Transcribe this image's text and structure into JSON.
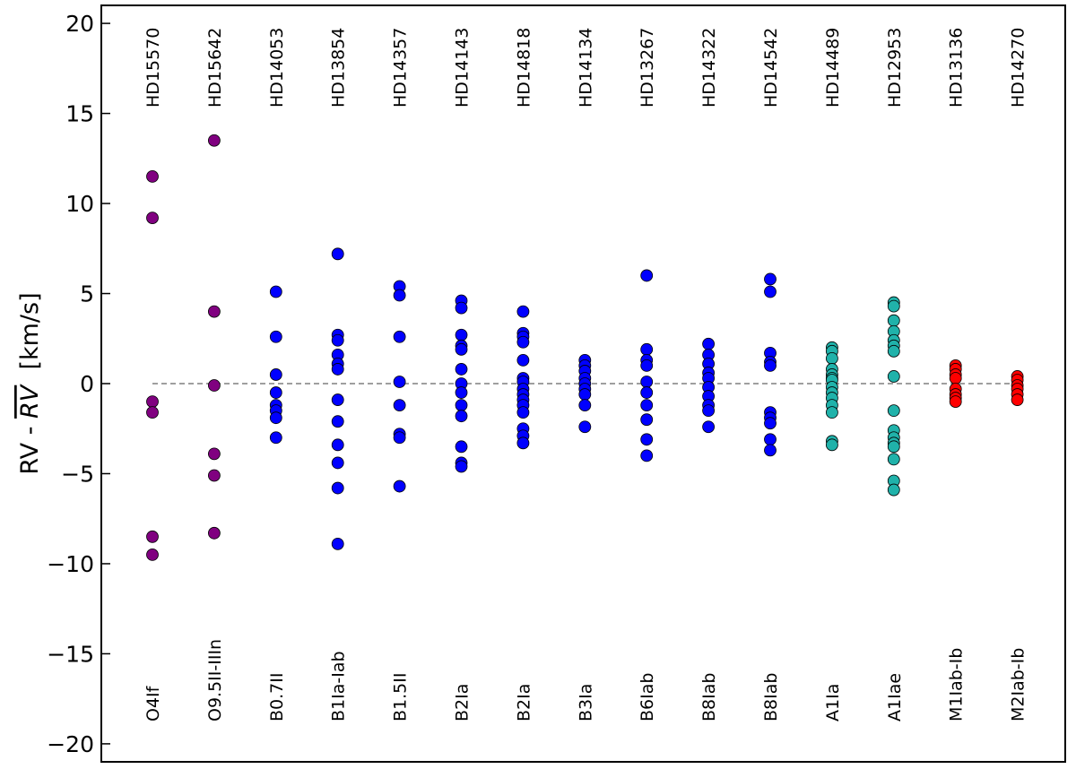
{
  "chart_data": {
    "type": "scatter",
    "title": "",
    "xlabel": "",
    "ylabel": "RV - RV  [km/s]",
    "ylabel_parts": {
      "prefix": "RV - ",
      "overline": "RV",
      "suffix": "  [km/s]"
    },
    "ylim": [
      -21,
      21
    ],
    "yticks": [
      -20,
      -15,
      -10,
      -5,
      0,
      5,
      10,
      15,
      20
    ],
    "ytick_labels": [
      "−20",
      "−15",
      "−10",
      "−5",
      "0",
      "5",
      "10",
      "15",
      "20"
    ],
    "grid": false,
    "legend": "none",
    "reference_line": {
      "y": 0,
      "style": "dashed",
      "color": "#666666"
    },
    "colors": {
      "O": "#800080",
      "B": "#0000ff",
      "A": "#20b2aa",
      "M": "#ff0000"
    },
    "stars": [
      {
        "name": "HD15570",
        "sptype": "O4If",
        "color_class": "O",
        "values": [
          11.5,
          9.2,
          -1.0,
          -1.6,
          -8.5,
          -9.5
        ]
      },
      {
        "name": "HD15642",
        "sptype": "O9.5II-IIIn",
        "color_class": "O",
        "values": [
          13.5,
          4.0,
          -0.1,
          -3.9,
          -5.1,
          -8.3
        ]
      },
      {
        "name": "HD14053",
        "sptype": "B0.7II",
        "color_class": "B",
        "values": [
          5.1,
          2.6,
          0.5,
          -0.5,
          -1.2,
          -1.5,
          -1.9,
          -3.0
        ]
      },
      {
        "name": "HD13854",
        "sptype": "B1Ia-Iab",
        "color_class": "B",
        "values": [
          7.2,
          2.7,
          2.4,
          1.6,
          1.1,
          0.8,
          -0.9,
          -2.1,
          -3.4,
          -4.4,
          -5.8,
          -8.9
        ]
      },
      {
        "name": "HD14357",
        "sptype": "B1.5II",
        "color_class": "B",
        "values": [
          5.4,
          4.9,
          2.6,
          0.1,
          -1.2,
          -2.8,
          -3.0,
          -5.7
        ]
      },
      {
        "name": "HD14143",
        "sptype": "B2Ia",
        "color_class": "B",
        "values": [
          4.6,
          4.2,
          2.7,
          2.1,
          1.9,
          0.8,
          0.0,
          -0.5,
          -1.2,
          -1.8,
          -3.5,
          -4.4,
          -4.6
        ]
      },
      {
        "name": "HD14818",
        "sptype": "B2Ia",
        "color_class": "B",
        "values": [
          4.0,
          2.8,
          2.6,
          2.3,
          1.3,
          0.3,
          0.1,
          -0.3,
          -0.6,
          -0.9,
          -1.2,
          -1.6,
          -2.5,
          -2.9,
          -3.3
        ]
      },
      {
        "name": "HD14134",
        "sptype": "B3Ia",
        "color_class": "B",
        "values": [
          1.3,
          1.0,
          0.7,
          0.3,
          0.0,
          -0.3,
          -0.6,
          -1.2,
          -2.4
        ]
      },
      {
        "name": "HD13267",
        "sptype": "B6Iab",
        "color_class": "B",
        "values": [
          6.0,
          1.9,
          1.3,
          1.0,
          0.1,
          -0.5,
          -1.2,
          -2.0,
          -3.1,
          -4.0
        ]
      },
      {
        "name": "HD14322",
        "sptype": "B8Iab",
        "color_class": "B",
        "values": [
          2.2,
          1.6,
          1.1,
          0.6,
          0.3,
          -0.2,
          -0.7,
          -1.2,
          -1.5,
          -2.4
        ]
      },
      {
        "name": "HD14542",
        "sptype": "B8Iab",
        "color_class": "B",
        "values": [
          5.8,
          5.1,
          1.7,
          1.2,
          1.0,
          -1.6,
          -1.9,
          -2.2,
          -3.1,
          -3.7
        ]
      },
      {
        "name": "HD14489",
        "sptype": "A1Ia",
        "color_class": "A",
        "values": [
          2.0,
          1.8,
          1.4,
          0.8,
          0.5,
          0.3,
          0.2,
          -0.2,
          -0.5,
          -0.8,
          -1.2,
          -1.6,
          -3.2,
          -3.4
        ]
      },
      {
        "name": "HD12953",
        "sptype": "A1Iae",
        "color_class": "A",
        "values": [
          4.5,
          4.3,
          3.5,
          2.9,
          2.4,
          2.1,
          1.8,
          0.4,
          -1.5,
          -2.6,
          -3.0,
          -3.3,
          -3.5,
          -4.2,
          -5.4,
          -5.9
        ]
      },
      {
        "name": "HD13136",
        "sptype": "M1Iab-Ib",
        "color_class": "M",
        "values": [
          1.0,
          0.8,
          0.5,
          0.3,
          -0.3,
          -0.6,
          -0.8,
          -1.0
        ]
      },
      {
        "name": "HD14270",
        "sptype": "M2Iab-Ib",
        "color_class": "M",
        "values": [
          0.4,
          0.2,
          -0.1,
          -0.3,
          -0.6,
          -0.9
        ]
      }
    ]
  }
}
